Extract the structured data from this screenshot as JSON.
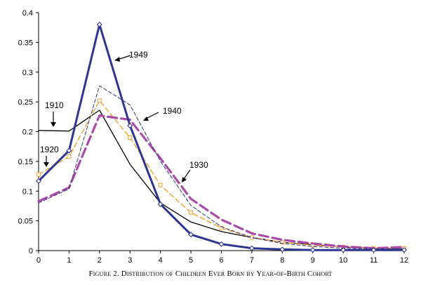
{
  "chart_data": {
    "type": "line",
    "title": "",
    "xlabel": "",
    "ylabel": "",
    "x": [
      0,
      1,
      2,
      3,
      4,
      5,
      6,
      7,
      8,
      9,
      10,
      11,
      12
    ],
    "x_tick_labels": [
      "0",
      "1",
      "2",
      "3",
      "4",
      "5",
      "6",
      "7",
      "8",
      "9",
      "10",
      "11",
      "12"
    ],
    "y_tick_labels": [
      "0",
      "0.05",
      "0.1",
      "0.15",
      "0.2",
      "0.25",
      "0.3",
      "0.35",
      "0.4"
    ],
    "xlim": [
      0,
      12
    ],
    "ylim": [
      0,
      0.4
    ],
    "grid": false,
    "legend": "none",
    "series": [
      {
        "name": "1910",
        "color": "#000000",
        "style": "solid-thin",
        "marker": "none",
        "values": [
          0.202,
          0.201,
          0.236,
          0.145,
          0.08,
          0.048,
          0.032,
          0.022,
          0.014,
          0.01,
          0.006,
          0.004,
          0.003
        ]
      },
      {
        "name": "1920",
        "color": "#f0a030",
        "style": "dashed",
        "marker": "open-square",
        "values": [
          0.128,
          0.158,
          0.252,
          0.19,
          0.11,
          0.064,
          0.038,
          0.022,
          0.014,
          0.009,
          0.006,
          0.004,
          0.004
        ]
      },
      {
        "name": "1930",
        "color": "#a84aa6",
        "style": "long-dashed-thick",
        "marker": "none",
        "values": [
          0.083,
          0.106,
          0.227,
          0.22,
          0.155,
          0.087,
          0.052,
          0.029,
          0.018,
          0.012,
          0.007,
          0.004,
          0.006
        ]
      },
      {
        "name": "1940",
        "color": "#2b3880",
        "style": "dashed-thin",
        "marker": "none",
        "values": [
          0.08,
          0.104,
          0.277,
          0.245,
          0.15,
          0.076,
          0.04,
          0.022,
          0.012,
          0.007,
          0.004,
          0.003,
          0.003
        ]
      },
      {
        "name": "1949",
        "color": "#2e3591",
        "style": "solid-thick",
        "marker": "open-diamond",
        "values": [
          0.117,
          0.168,
          0.38,
          0.21,
          0.078,
          0.027,
          0.011,
          0.004,
          0.002,
          0.001,
          0.001,
          0.001,
          0.001
        ]
      }
    ],
    "annotations": [
      {
        "text": "1949",
        "series": "1949"
      },
      {
        "text": "1940",
        "series": "1940"
      },
      {
        "text": "1910",
        "series": "1910"
      },
      {
        "text": "1920",
        "series": "1920"
      },
      {
        "text": "1930",
        "series": "1930"
      }
    ],
    "caption": "Figure 2. Distribution of Children Ever Born by Year-of-Birth Cohort"
  }
}
